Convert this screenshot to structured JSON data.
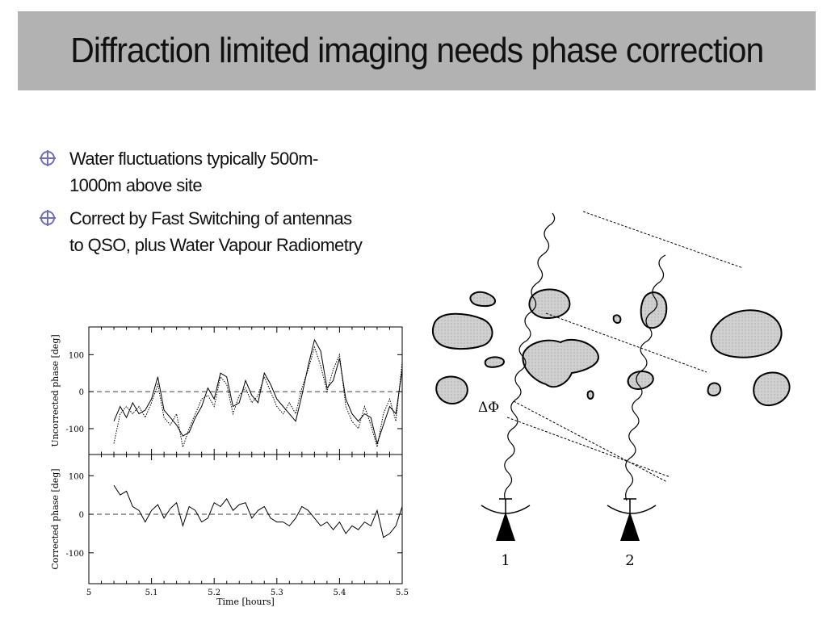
{
  "slide": {
    "title": "Diffraction limited imaging needs phase correction",
    "bullets": [
      {
        "text_line1": "Water fluctuations typically 500m-",
        "text_line2": "1000m above site"
      },
      {
        "text_line1": "Correct by Fast Switching of antennas",
        "text_line2": "to QSO, plus Water Vapour Radiometry"
      }
    ],
    "bullet_icon": "crosshair-globe-icon",
    "accent_color": "#7070b8"
  },
  "chart_data": [
    {
      "type": "line",
      "panel": "top",
      "ylabel": "Uncorrected phase [deg]",
      "xlim": [
        5,
        5.5
      ],
      "ylim": [
        -170,
        175
      ],
      "y_ticks": [
        "100",
        "0",
        "-100"
      ],
      "zero_line": "dashed",
      "series": [
        {
          "style": "solid",
          "x": [
            5.04,
            5.05,
            5.06,
            5.07,
            5.08,
            5.09,
            5.1,
            5.11,
            5.12,
            5.13,
            5.14,
            5.15,
            5.16,
            5.17,
            5.18,
            5.19,
            5.2,
            5.21,
            5.22,
            5.23,
            5.24,
            5.25,
            5.26,
            5.27,
            5.28,
            5.29,
            5.3,
            5.31,
            5.32,
            5.33,
            5.34,
            5.35,
            5.36,
            5.37,
            5.38,
            5.39,
            5.4,
            5.41,
            5.42,
            5.43,
            5.44,
            5.45,
            5.46,
            5.47,
            5.48,
            5.49,
            5.5
          ],
          "values": [
            -80,
            -40,
            -70,
            -30,
            -60,
            -50,
            -20,
            40,
            -50,
            -70,
            -90,
            -120,
            -110,
            -70,
            -40,
            10,
            -20,
            50,
            40,
            -40,
            -30,
            30,
            -10,
            -30,
            50,
            20,
            -20,
            -40,
            -60,
            -80,
            -10,
            70,
            140,
            110,
            10,
            30,
            90,
            -20,
            -60,
            -80,
            -60,
            -70,
            -140,
            -90,
            -40,
            -60,
            60
          ]
        },
        {
          "style": "dotted",
          "x": [
            5.04,
            5.05,
            5.06,
            5.07,
            5.08,
            5.09,
            5.1,
            5.11,
            5.12,
            5.13,
            5.14,
            5.15,
            5.16,
            5.17,
            5.18,
            5.19,
            5.2,
            5.21,
            5.22,
            5.23,
            5.24,
            5.25,
            5.26,
            5.27,
            5.28,
            5.29,
            5.3,
            5.31,
            5.32,
            5.33,
            5.34,
            5.35,
            5.36,
            5.37,
            5.38,
            5.39,
            5.4,
            5.41,
            5.42,
            5.43,
            5.44,
            5.45,
            5.46,
            5.47,
            5.48,
            5.49,
            5.5
          ],
          "values": [
            -140,
            -60,
            -40,
            -60,
            -40,
            -70,
            -30,
            20,
            -70,
            -90,
            -60,
            -150,
            -100,
            -60,
            -20,
            -10,
            -40,
            40,
            20,
            -60,
            -10,
            10,
            -30,
            -10,
            40,
            0,
            -40,
            -60,
            -30,
            -60,
            10,
            60,
            120,
            70,
            0,
            60,
            100,
            -40,
            -80,
            -100,
            -40,
            -90,
            -150,
            -60,
            -20,
            -80,
            80
          ]
        }
      ]
    },
    {
      "type": "line",
      "panel": "bottom",
      "xlabel": "Time [hours]",
      "ylabel": "Corrected phase [deg]",
      "xlim": [
        5,
        5.5
      ],
      "ylim": [
        -180,
        155
      ],
      "x_ticks": [
        "5",
        "5.1",
        "5.2",
        "5.3",
        "5.4",
        "5.5"
      ],
      "y_ticks": [
        "100",
        "0",
        "-100"
      ],
      "zero_line": "dashed",
      "series": [
        {
          "style": "solid",
          "x": [
            5.04,
            5.05,
            5.06,
            5.07,
            5.08,
            5.09,
            5.1,
            5.11,
            5.12,
            5.13,
            5.14,
            5.15,
            5.16,
            5.17,
            5.18,
            5.19,
            5.2,
            5.21,
            5.22,
            5.23,
            5.24,
            5.25,
            5.26,
            5.27,
            5.28,
            5.29,
            5.3,
            5.31,
            5.32,
            5.33,
            5.34,
            5.35,
            5.36,
            5.37,
            5.38,
            5.39,
            5.4,
            5.41,
            5.42,
            5.43,
            5.44,
            5.45,
            5.46,
            5.47,
            5.48,
            5.49,
            5.5
          ],
          "values": [
            75,
            50,
            60,
            20,
            10,
            -20,
            10,
            25,
            -10,
            15,
            30,
            -30,
            20,
            10,
            -20,
            -10,
            30,
            20,
            40,
            10,
            25,
            30,
            -10,
            10,
            20,
            -10,
            -20,
            -20,
            -30,
            -10,
            20,
            10,
            -10,
            -30,
            -20,
            -40,
            -20,
            -50,
            -30,
            -40,
            -20,
            -30,
            10,
            -60,
            -50,
            -30,
            20
          ]
        }
      ]
    }
  ],
  "diagram": {
    "delta_phi_label": "ΔΦ",
    "antenna_labels": [
      "1",
      "2"
    ],
    "cloud_fill": "#d0d0d0"
  }
}
